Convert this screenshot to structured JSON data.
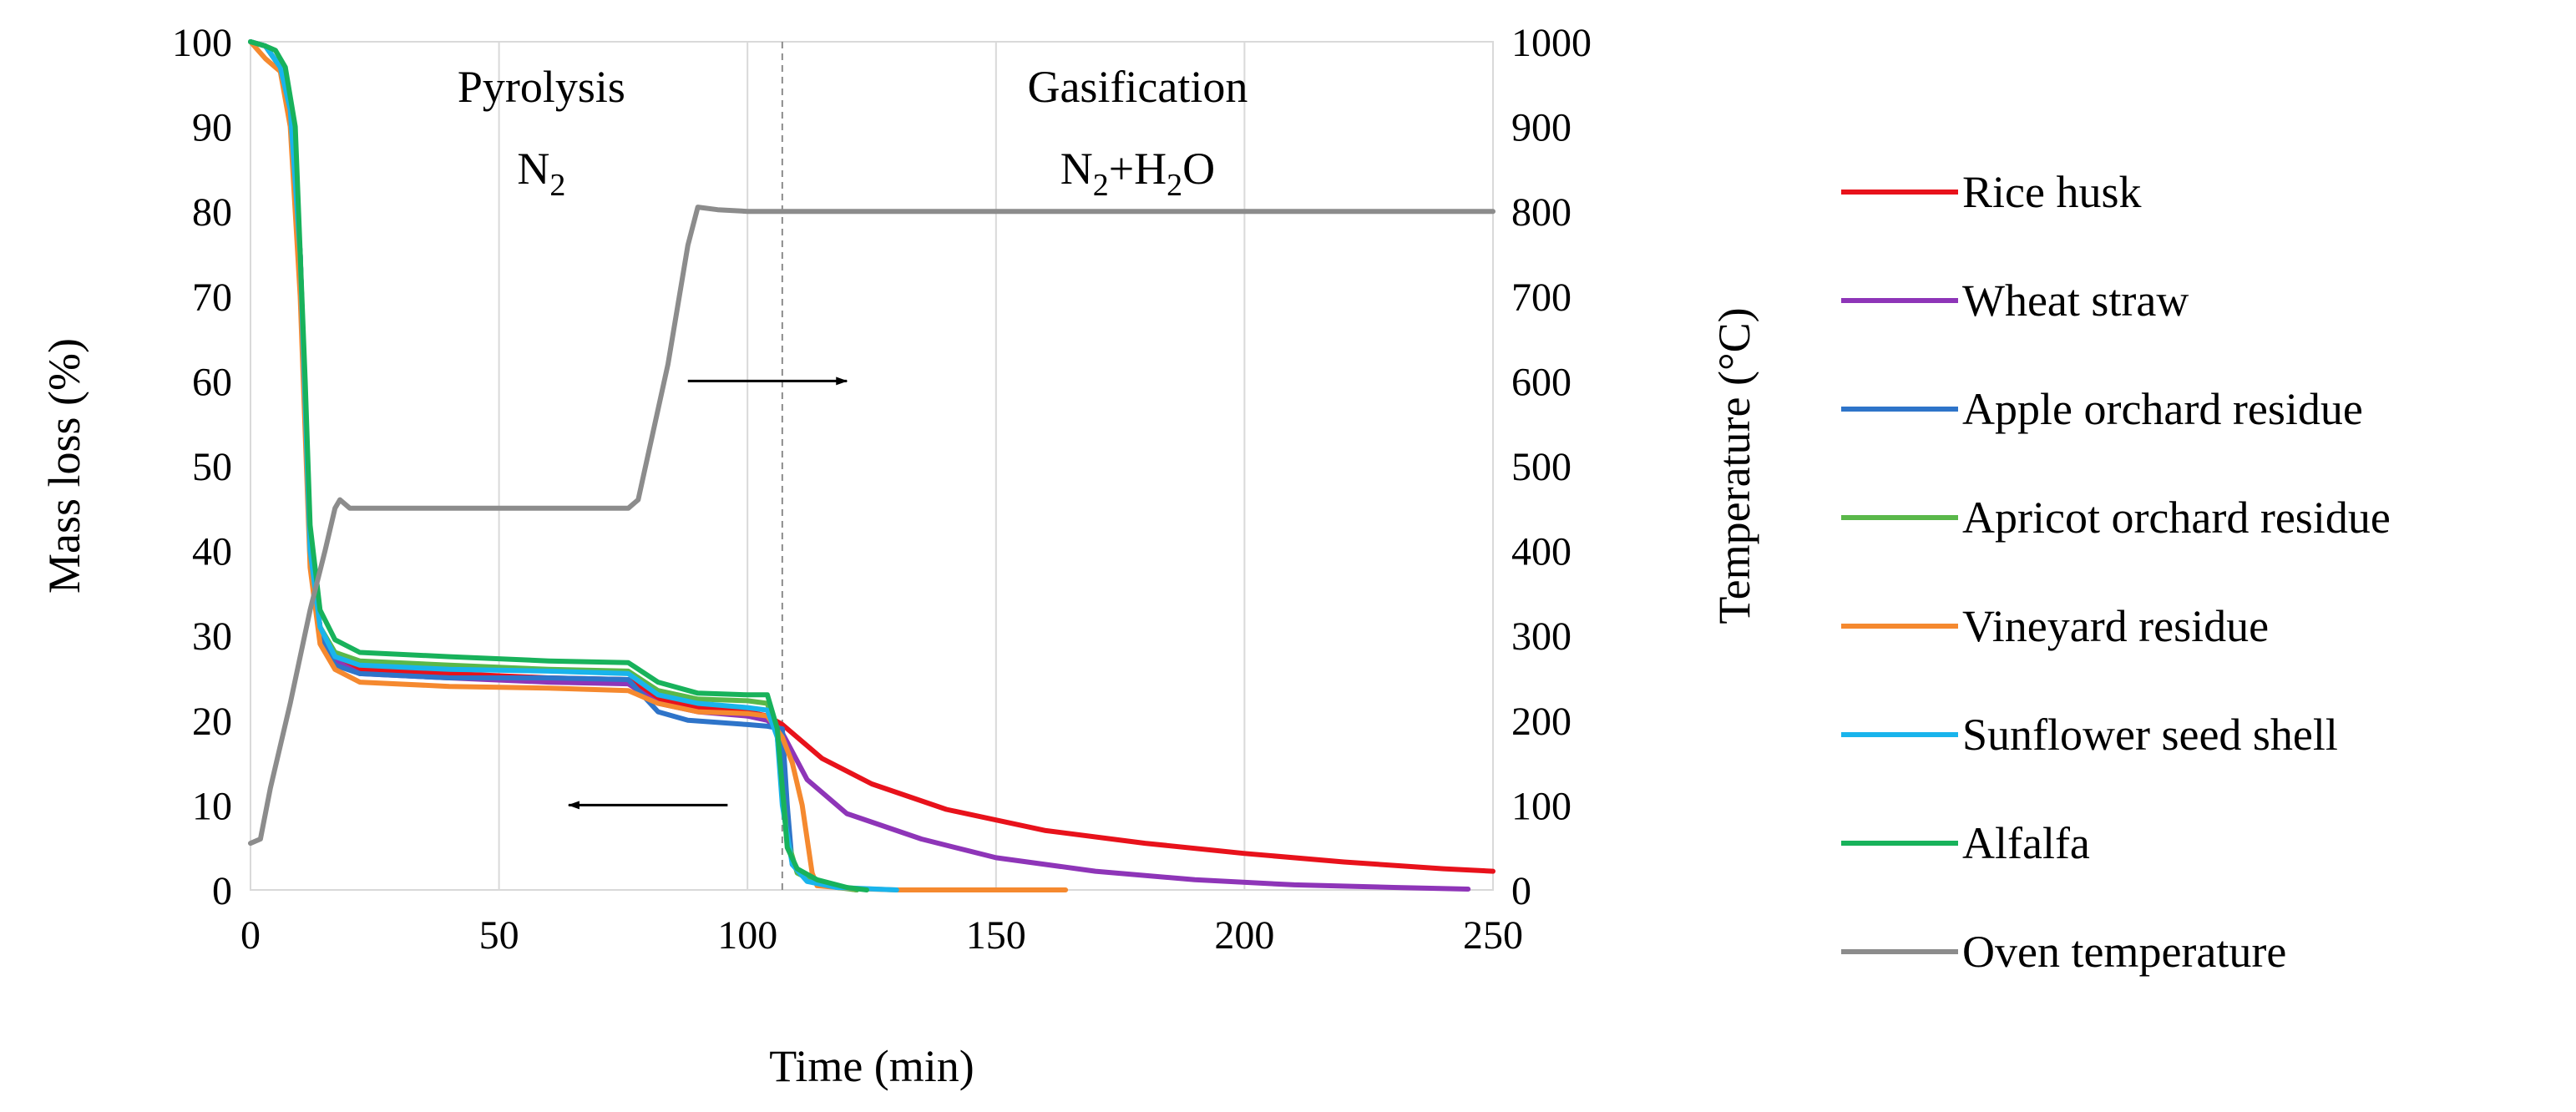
{
  "chart_data": {
    "type": "line",
    "xlabel": "Time (min)",
    "ylabel": "Mass loss (%)",
    "y2label": "Temperature (°C)",
    "xlim": [
      0,
      250
    ],
    "ylim": [
      0,
      100
    ],
    "y2lim": [
      0,
      1000
    ],
    "x_ticks": [
      0,
      50,
      100,
      150,
      200,
      250
    ],
    "y_ticks": [
      0,
      10,
      20,
      30,
      40,
      50,
      60,
      70,
      80,
      90,
      100
    ],
    "y2_ticks": [
      0,
      100,
      200,
      300,
      400,
      500,
      600,
      700,
      800,
      900,
      1000
    ],
    "grid": "vertical",
    "legend_position": "right",
    "regions": [
      {
        "label": "Pyrolysis",
        "sublabel_main": "N",
        "sublabel_sub": "2",
        "sublabel_tail": ""
      },
      {
        "label": "Gasification",
        "sublabel_main": "N",
        "sublabel_sub": "2",
        "sublabel_tail": "+H",
        "sublabel_sub2": "2",
        "sublabel_tail2": "O"
      }
    ],
    "region_divider_x": 107,
    "series": [
      {
        "name": "Rice husk",
        "color": "#e8121b",
        "axis": "left",
        "points": [
          [
            0,
            100
          ],
          [
            3,
            99.5
          ],
          [
            6,
            97
          ],
          [
            8,
            92
          ],
          [
            10,
            75
          ],
          [
            12,
            40
          ],
          [
            14,
            31
          ],
          [
            17,
            27.5
          ],
          [
            22,
            26
          ],
          [
            40,
            25.5
          ],
          [
            60,
            25
          ],
          [
            76,
            24.8
          ],
          [
            82,
            22.5
          ],
          [
            90,
            21.5
          ],
          [
            100,
            21
          ],
          [
            104,
            20.5
          ],
          [
            107,
            19.5
          ],
          [
            115,
            15.5
          ],
          [
            125,
            12.5
          ],
          [
            140,
            9.5
          ],
          [
            160,
            7
          ],
          [
            180,
            5.5
          ],
          [
            200,
            4.3
          ],
          [
            220,
            3.3
          ],
          [
            240,
            2.5
          ],
          [
            250,
            2.2
          ]
        ]
      },
      {
        "name": "Wheat straw",
        "color": "#8e35b8",
        "axis": "left",
        "points": [
          [
            0,
            100
          ],
          [
            3,
            99.5
          ],
          [
            6,
            97
          ],
          [
            8,
            92
          ],
          [
            10,
            75
          ],
          [
            12,
            40
          ],
          [
            14,
            31
          ],
          [
            17,
            27
          ],
          [
            22,
            25.5
          ],
          [
            40,
            25
          ],
          [
            60,
            24.5
          ],
          [
            76,
            24.3
          ],
          [
            82,
            22
          ],
          [
            90,
            21
          ],
          [
            100,
            20.5
          ],
          [
            104,
            20
          ],
          [
            107,
            18.5
          ],
          [
            112,
            13
          ],
          [
            120,
            9
          ],
          [
            135,
            6
          ],
          [
            150,
            3.8
          ],
          [
            170,
            2.2
          ],
          [
            190,
            1.2
          ],
          [
            210,
            0.6
          ],
          [
            230,
            0.3
          ],
          [
            245,
            0.1
          ]
        ]
      },
      {
        "name": "Apple orchard residue",
        "color": "#2e74c9",
        "axis": "left",
        "points": [
          [
            0,
            100
          ],
          [
            3,
            99.5
          ],
          [
            6,
            97
          ],
          [
            8,
            92
          ],
          [
            10,
            75
          ],
          [
            12,
            40
          ],
          [
            14,
            30
          ],
          [
            17,
            26.5
          ],
          [
            22,
            25.5
          ],
          [
            40,
            25
          ],
          [
            60,
            25
          ],
          [
            76,
            24.8
          ],
          [
            82,
            21
          ],
          [
            88,
            20
          ],
          [
            100,
            19.5
          ],
          [
            104,
            19.3
          ],
          [
            107,
            19
          ],
          [
            108,
            10
          ],
          [
            109,
            3
          ],
          [
            112,
            1.5
          ],
          [
            116,
            0.5
          ],
          [
            120,
            0.2
          ],
          [
            122,
            0
          ]
        ]
      },
      {
        "name": "Apricot orchard residue",
        "color": "#5ab84a",
        "axis": "left",
        "points": [
          [
            0,
            100
          ],
          [
            3,
            99.5
          ],
          [
            6,
            97
          ],
          [
            8,
            92
          ],
          [
            10,
            75
          ],
          [
            12,
            40
          ],
          [
            14,
            31
          ],
          [
            17,
            28
          ],
          [
            22,
            27
          ],
          [
            40,
            26.5
          ],
          [
            60,
            26
          ],
          [
            76,
            25.8
          ],
          [
            82,
            23.5
          ],
          [
            90,
            22.5
          ],
          [
            100,
            22.3
          ],
          [
            104,
            22
          ],
          [
            106,
            18
          ],
          [
            108,
            6
          ],
          [
            110,
            2
          ],
          [
            114,
            0.8
          ],
          [
            118,
            0.3
          ],
          [
            122,
            0
          ]
        ]
      },
      {
        "name": "Vineyard residue",
        "color": "#f5892f",
        "axis": "left",
        "points": [
          [
            0,
            100
          ],
          [
            3,
            98
          ],
          [
            6,
            96.5
          ],
          [
            8,
            90
          ],
          [
            10,
            70
          ],
          [
            12,
            38
          ],
          [
            14,
            29
          ],
          [
            17,
            26
          ],
          [
            22,
            24.5
          ],
          [
            40,
            24
          ],
          [
            60,
            23.8
          ],
          [
            76,
            23.5
          ],
          [
            82,
            22
          ],
          [
            90,
            21
          ],
          [
            100,
            20.8
          ],
          [
            104,
            20.5
          ],
          [
            107,
            18
          ],
          [
            109,
            15
          ],
          [
            111,
            10
          ],
          [
            113,
            2
          ],
          [
            114,
            0.5
          ],
          [
            120,
            0.2
          ],
          [
            130,
            0
          ],
          [
            164,
            0
          ]
        ]
      },
      {
        "name": "Sunflower seed shell",
        "color": "#19b4ec",
        "axis": "left",
        "points": [
          [
            0,
            100
          ],
          [
            3,
            99.5
          ],
          [
            6,
            97
          ],
          [
            8,
            92
          ],
          [
            10,
            75
          ],
          [
            12,
            40
          ],
          [
            14,
            31
          ],
          [
            17,
            27.5
          ],
          [
            22,
            26.5
          ],
          [
            40,
            26
          ],
          [
            60,
            25.8
          ],
          [
            76,
            25.5
          ],
          [
            82,
            23
          ],
          [
            90,
            22
          ],
          [
            100,
            21.5
          ],
          [
            104,
            21.2
          ],
          [
            106,
            18
          ],
          [
            107,
            10
          ],
          [
            109,
            3
          ],
          [
            112,
            1
          ],
          [
            118,
            0.3
          ],
          [
            130,
            0
          ]
        ]
      },
      {
        "name": "Alfalfa",
        "color": "#18b25b",
        "axis": "left",
        "points": [
          [
            0,
            100
          ],
          [
            3,
            99.5
          ],
          [
            5,
            99
          ],
          [
            7,
            97
          ],
          [
            9,
            90
          ],
          [
            11,
            60
          ],
          [
            12,
            43
          ],
          [
            14,
            33
          ],
          [
            17,
            29.5
          ],
          [
            22,
            28
          ],
          [
            40,
            27.5
          ],
          [
            60,
            27
          ],
          [
            76,
            26.8
          ],
          [
            82,
            24.5
          ],
          [
            90,
            23.2
          ],
          [
            100,
            23
          ],
          [
            104,
            23
          ],
          [
            106,
            19
          ],
          [
            107,
            12
          ],
          [
            108,
            5
          ],
          [
            110,
            2.5
          ],
          [
            114,
            1.2
          ],
          [
            120,
            0.3
          ],
          [
            124,
            0
          ]
        ]
      },
      {
        "name": "Oven temperature",
        "color": "#8c8c8c",
        "axis": "right",
        "points": [
          [
            0,
            55
          ],
          [
            2,
            60
          ],
          [
            4,
            120
          ],
          [
            8,
            220
          ],
          [
            12,
            330
          ],
          [
            15,
            400
          ],
          [
            17,
            450
          ],
          [
            18,
            460
          ],
          [
            20,
            450
          ],
          [
            40,
            450
          ],
          [
            60,
            450
          ],
          [
            76,
            450
          ],
          [
            78,
            460
          ],
          [
            84,
            620
          ],
          [
            88,
            760
          ],
          [
            90,
            805
          ],
          [
            94,
            802
          ],
          [
            100,
            800
          ],
          [
            150,
            800
          ],
          [
            200,
            800
          ],
          [
            250,
            800
          ]
        ]
      }
    ],
    "annotations": [
      {
        "type": "arrow",
        "direction": "right",
        "x_from": 88,
        "x_to": 120,
        "y2": 600
      },
      {
        "type": "arrow",
        "direction": "left",
        "x_from": 96,
        "x_to": 64,
        "y": 10
      }
    ]
  }
}
